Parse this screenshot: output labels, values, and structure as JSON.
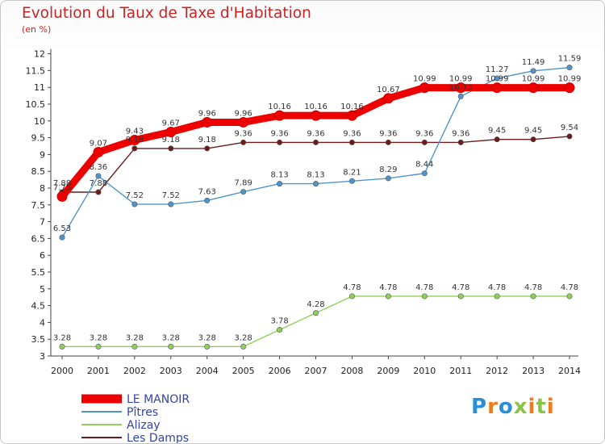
{
  "header": {
    "title": "Evolution du Taux de Taxe d'Habitation",
    "subtitle": "(en %)"
  },
  "logo": {
    "text": "Proxiti"
  },
  "chart_data": {
    "type": "line",
    "title": "Evolution du Taux de Taxe d'Habitation",
    "ylabel": "(en %)",
    "xlabel": "",
    "x": [
      "2000",
      "2001",
      "2002",
      "2003",
      "2004",
      "2005",
      "2006",
      "2007",
      "2008",
      "2009",
      "2010",
      "2011",
      "2012",
      "2013",
      "2014"
    ],
    "ylim": [
      3,
      12
    ],
    "yticks": [
      "3",
      "3.5",
      "4",
      "4.5",
      "5",
      "5.5",
      "6",
      "6.5",
      "7",
      "7.5",
      "8",
      "8.5",
      "9",
      "9.5",
      "10",
      "10.5",
      "11",
      "11.5",
      "12"
    ],
    "grid": false,
    "legend_position": "bottom-left",
    "series": [
      {
        "name": "LE MANOIR",
        "color": "#ee0000",
        "values": [
          7.75,
          9.07,
          9.43,
          9.67,
          9.96,
          9.96,
          10.16,
          10.16,
          10.16,
          10.67,
          10.99,
          10.99,
          10.99,
          10.99,
          10.99
        ],
        "labels": [
          "7.75",
          "9.07",
          "9.43",
          "9.67",
          "9.96",
          "9.96",
          "10.16",
          "10.16",
          "10.16",
          "10.67",
          "10.99",
          "10.99",
          "10.99",
          "10.99",
          "10.99"
        ]
      },
      {
        "name": "Pîtres",
        "color": "#4f95c9",
        "values": [
          6.53,
          8.36,
          7.52,
          7.52,
          7.63,
          7.89,
          8.13,
          8.13,
          8.21,
          8.29,
          8.44,
          10.73,
          11.27,
          11.49,
          11.59
        ],
        "labels": [
          "6.53",
          "8.36",
          "7.52",
          "7.52",
          "7.63",
          "7.89",
          "8.13",
          "8.13",
          "8.21",
          "8.29",
          "8.44",
          "10.73",
          "11.27",
          "11.49",
          "11.59"
        ]
      },
      {
        "name": "Alizay",
        "color": "#8fd05a",
        "values": [
          3.28,
          3.28,
          3.28,
          3.28,
          3.28,
          3.28,
          3.78,
          4.28,
          4.78,
          4.78,
          4.78,
          4.78,
          4.78,
          4.78,
          4.78
        ],
        "labels": [
          "3.28",
          "3.28",
          "3.28",
          "3.28",
          "3.28",
          "3.28",
          "3.78",
          "4.28",
          "4.78",
          "4.78",
          "4.78",
          "4.78",
          "4.78",
          "4.78",
          "4.78"
        ]
      },
      {
        "name": "Les Damps",
        "color": "#6b1c1c",
        "values": [
          7.88,
          7.88,
          9.18,
          9.18,
          9.18,
          9.36,
          9.36,
          9.36,
          9.36,
          9.36,
          9.36,
          9.36,
          9.45,
          9.45,
          9.54
        ],
        "labels": [
          "7.88",
          "7.88",
          "9.18",
          "9.18",
          "9.18",
          "9.36",
          "9.36",
          "9.36",
          "9.36",
          "9.36",
          "9.36",
          "9.36",
          "9.45",
          "9.45",
          "9.54"
        ]
      }
    ]
  }
}
